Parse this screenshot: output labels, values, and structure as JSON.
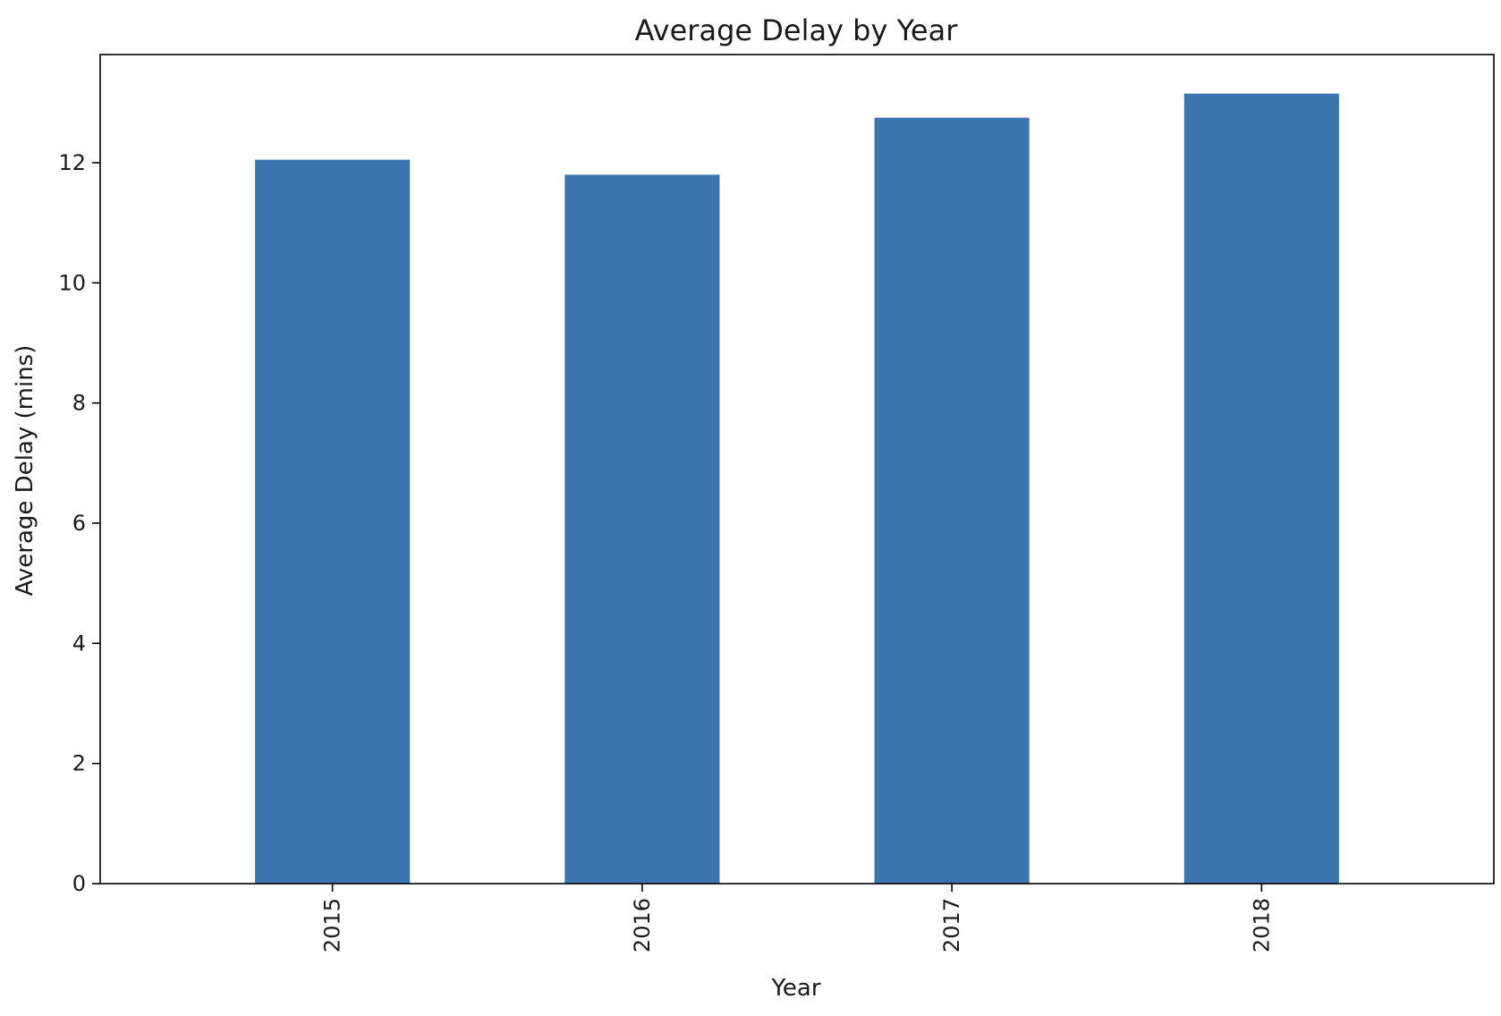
{
  "chart_data": {
    "type": "bar",
    "title": "Average Delay by Year",
    "xlabel": "Year",
    "ylabel": "Average Delay (mins)",
    "categories": [
      "2015",
      "2016",
      "2017",
      "2018"
    ],
    "values": [
      12.05,
      11.8,
      12.75,
      13.15
    ],
    "ylim": [
      0,
      13.8
    ],
    "yticks": [
      0,
      2,
      4,
      6,
      8,
      10,
      12
    ],
    "grid": false,
    "legend": "none",
    "bar_color": "#3b75af"
  }
}
